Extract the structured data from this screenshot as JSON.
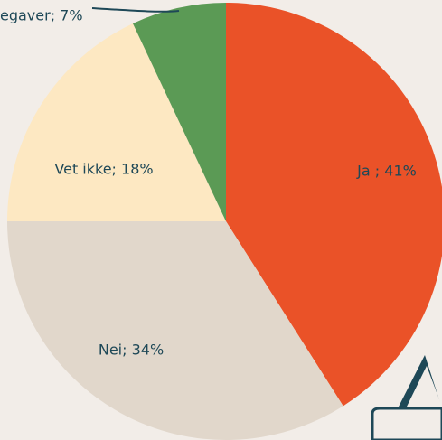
{
  "chart_data": {
    "type": "pie",
    "values": [
      41,
      34,
      18,
      7
    ],
    "value_labels": [
      "Ja ; 41%",
      "Nei; 34%",
      "Vet ikke; 18%",
      "egaver; 7%"
    ],
    "colors": [
      "#ea5228",
      "#e1d7cb",
      "#fde8c2",
      "#5b9a55"
    ]
  }
}
